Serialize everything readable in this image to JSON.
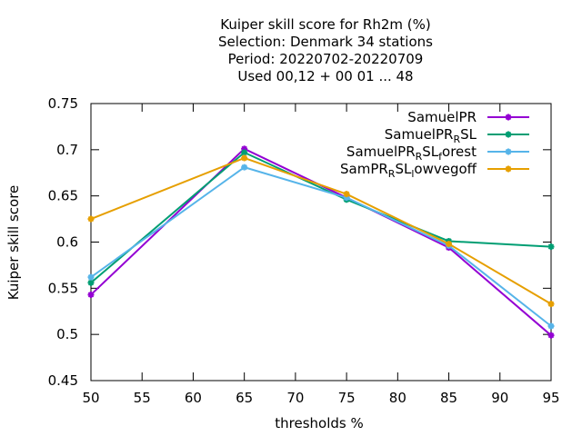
{
  "chart_data": {
    "type": "line",
    "title_lines": [
      "Kuiper skill score  for Rh2m (%)",
      "Selection: Denmark     34 stations",
      "Period: 20220702-20220709",
      "Used  00,12  + 00 01 ... 48"
    ],
    "xlabel": "thresholds %",
    "ylabel": "Kuiper skill score",
    "x": [
      50,
      65,
      75,
      85,
      95
    ],
    "xlim": [
      50,
      95
    ],
    "ylim": [
      0.45,
      0.75
    ],
    "xticks": [
      "50",
      "55",
      "60",
      "65",
      "70",
      "75",
      "80",
      "85",
      "90",
      "95"
    ],
    "yticks": [
      "0.45",
      "0.5",
      "0.55",
      "0.6",
      "0.65",
      "0.7",
      "0.75"
    ],
    "grid": false,
    "legend_position": "top-right",
    "series": [
      {
        "name": "SamuelPR",
        "name_parts": [
          [
            "SamuelPR",
            "n"
          ]
        ],
        "color": "#9400d3",
        "values": [
          0.543,
          0.701,
          0.648,
          0.594,
          0.499
        ]
      },
      {
        "name": "SamuelPR_RSL",
        "name_parts": [
          [
            "SamuelPR",
            "n"
          ],
          [
            "R",
            "sub"
          ],
          [
            "SL",
            "n"
          ]
        ],
        "color": "#009e73",
        "values": [
          0.556,
          0.697,
          0.646,
          0.601,
          0.595
        ]
      },
      {
        "name": "SamuelPR_RSL_forest",
        "name_parts": [
          [
            "SamuelPR",
            "n"
          ],
          [
            "R",
            "sub"
          ],
          [
            "SL",
            "n"
          ],
          [
            "f",
            "sub"
          ],
          [
            "orest",
            "n"
          ]
        ],
        "color": "#56b4e9",
        "values": [
          0.562,
          0.681,
          0.648,
          0.596,
          0.509
        ]
      },
      {
        "name": "SamPR_RSL_lowvegoff",
        "name_parts": [
          [
            "SamPR",
            "n"
          ],
          [
            "R",
            "sub"
          ],
          [
            "SL",
            "n"
          ],
          [
            "l",
            "sub"
          ],
          [
            "owvegoff",
            "n"
          ]
        ],
        "color": "#e69f00",
        "values": [
          0.625,
          0.691,
          0.652,
          0.598,
          0.533
        ]
      }
    ]
  }
}
